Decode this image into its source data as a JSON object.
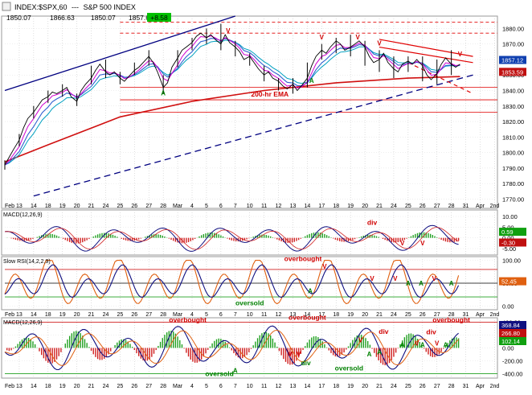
{
  "header": {
    "symbol": "INDEX:$SPX,60",
    "separator": "---",
    "name": "S&P 500 INDEX",
    "open": "1850.07",
    "high": "1866.63",
    "low": "1850.07",
    "close": "1857.62",
    "change": "+8.58"
  },
  "colors": {
    "price": "#000000",
    "ema_fast": "#3060d0",
    "ema_mid": "#d000d0",
    "ema_slow": "#00a0c0",
    "ema200": "#d01010",
    "trend_blue": "#000080",
    "trend_red": "#e00000",
    "trend_green": "#208060",
    "up_hist": "#20a020",
    "down_hist": "#d02020",
    "text_red": "#d00000",
    "text_green": "#008000"
  },
  "chart_data": [
    {
      "type": "line",
      "panel": "price",
      "y_ticks": [
        1770,
        1780,
        1790,
        1800,
        1810,
        1820,
        1830,
        1840,
        1850,
        1860,
        1870,
        1880
      ],
      "ylim": [
        1764,
        1888
      ],
      "x_sessions": [
        "Feb",
        "13",
        "14",
        "18",
        "19",
        "20",
        "21",
        "24",
        "25",
        "26",
        "27",
        "28",
        "Mar",
        "4",
        "5",
        "6",
        "7",
        "10",
        "11",
        "12",
        "13",
        "14",
        "17",
        "18",
        "19",
        "20",
        "21",
        "24",
        "25",
        "26",
        "27",
        "28",
        "31",
        "Apr",
        "2nd"
      ],
      "session_index": [
        0,
        13,
        14,
        15,
        16,
        17,
        18,
        19,
        20,
        21,
        22,
        23,
        24,
        25,
        26,
        27,
        28,
        29,
        30,
        31,
        32,
        33,
        34,
        35,
        36,
        37,
        38,
        39,
        40,
        41,
        42,
        43,
        44,
        45,
        46
      ],
      "visible_sessions_start": 12,
      "price_close_points": [
        [
          12.0,
          1792
        ],
        [
          12.3,
          1797
        ],
        [
          12.6,
          1802
        ],
        [
          13.0,
          1808
        ],
        [
          13.3,
          1816
        ],
        [
          13.6,
          1822
        ],
        [
          14.0,
          1826
        ],
        [
          14.3,
          1830
        ],
        [
          14.6,
          1834
        ],
        [
          15.0,
          1836
        ],
        [
          15.3,
          1839
        ],
        [
          15.6,
          1838
        ],
        [
          16.0,
          1840
        ],
        [
          16.3,
          1842
        ],
        [
          16.6,
          1836
        ],
        [
          17.0,
          1833
        ],
        [
          17.3,
          1840
        ],
        [
          17.6,
          1844
        ],
        [
          18.0,
          1848
        ],
        [
          18.3,
          1853
        ],
        [
          18.6,
          1857
        ],
        [
          19.0,
          1852
        ],
        [
          19.3,
          1850
        ],
        [
          19.6,
          1852
        ],
        [
          20.0,
          1848
        ],
        [
          20.3,
          1846
        ],
        [
          20.6,
          1849
        ],
        [
          21.0,
          1853
        ],
        [
          21.3,
          1855
        ],
        [
          21.6,
          1858
        ],
        [
          22.0,
          1862
        ],
        [
          22.3,
          1858
        ],
        [
          22.6,
          1852
        ],
        [
          23.0,
          1842
        ],
        [
          23.3,
          1845
        ],
        [
          23.6,
          1855
        ],
        [
          24.0,
          1861
        ],
        [
          24.3,
          1866
        ],
        [
          24.6,
          1868
        ],
        [
          25.0,
          1871
        ],
        [
          25.3,
          1875
        ],
        [
          25.6,
          1877
        ],
        [
          26.0,
          1874
        ],
        [
          26.3,
          1876
        ],
        [
          26.6,
          1873
        ],
        [
          27.0,
          1870
        ],
        [
          27.3,
          1876
        ],
        [
          27.6,
          1871
        ],
        [
          28.0,
          1868
        ],
        [
          28.3,
          1865
        ],
        [
          28.6,
          1860
        ],
        [
          29.0,
          1862
        ],
        [
          29.3,
          1858
        ],
        [
          29.6,
          1854
        ],
        [
          30.0,
          1850
        ],
        [
          30.3,
          1852
        ],
        [
          30.6,
          1848
        ],
        [
          31.0,
          1846
        ],
        [
          31.3,
          1843
        ],
        [
          31.6,
          1841
        ],
        [
          32.0,
          1844
        ],
        [
          32.3,
          1840
        ],
        [
          32.6,
          1843
        ],
        [
          33.0,
          1848
        ],
        [
          33.3,
          1856
        ],
        [
          33.6,
          1862
        ],
        [
          34.0,
          1866
        ],
        [
          34.3,
          1864
        ],
        [
          34.6,
          1868
        ],
        [
          35.0,
          1872
        ],
        [
          35.3,
          1870
        ],
        [
          35.6,
          1866
        ],
        [
          36.0,
          1868
        ],
        [
          36.3,
          1870
        ],
        [
          36.6,
          1872
        ],
        [
          37.0,
          1868
        ],
        [
          37.3,
          1862
        ],
        [
          37.6,
          1858
        ],
        [
          38.0,
          1860
        ],
        [
          38.3,
          1864
        ],
        [
          38.6,
          1858
        ],
        [
          39.0,
          1854
        ],
        [
          39.3,
          1852
        ],
        [
          39.6,
          1857
        ],
        [
          40.0,
          1859
        ],
        [
          40.3,
          1857
        ],
        [
          40.6,
          1860
        ],
        [
          41.0,
          1856
        ],
        [
          41.3,
          1850
        ],
        [
          41.6,
          1847
        ],
        [
          42.0,
          1851
        ],
        [
          42.3,
          1857
        ],
        [
          42.6,
          1861
        ],
        [
          43.0,
          1857
        ],
        [
          43.3,
          1855
        ],
        [
          43.6,
          1857
        ]
      ],
      "price_high_low": [
        [
          12.0,
          1789,
          1795
        ],
        [
          13.0,
          1804,
          1812
        ],
        [
          14.0,
          1822,
          1830
        ],
        [
          15.0,
          1832,
          1840
        ],
        [
          16.0,
          1836,
          1844
        ],
        [
          17.0,
          1830,
          1838
        ],
        [
          18.0,
          1844,
          1856
        ],
        [
          19.0,
          1848,
          1860
        ],
        [
          20.0,
          1844,
          1852
        ],
        [
          21.0,
          1850,
          1858
        ],
        [
          22.0,
          1856,
          1866
        ],
        [
          23.0,
          1838,
          1850
        ],
        [
          24.0,
          1855,
          1866
        ],
        [
          25.0,
          1866,
          1874
        ],
        [
          26.0,
          1870,
          1880
        ],
        [
          27.0,
          1866,
          1883
        ],
        [
          28.0,
          1862,
          1872
        ],
        [
          29.0,
          1856,
          1864
        ],
        [
          30.0,
          1846,
          1856
        ],
        [
          31.0,
          1840,
          1848
        ],
        [
          32.0,
          1838,
          1848
        ],
        [
          33.0,
          1842,
          1858
        ],
        [
          34.0,
          1860,
          1870
        ],
        [
          35.0,
          1864,
          1874
        ],
        [
          36.0,
          1862,
          1876
        ],
        [
          37.0,
          1856,
          1872
        ],
        [
          38.0,
          1852,
          1866
        ],
        [
          39.0,
          1848,
          1862
        ],
        [
          40.0,
          1852,
          1862
        ],
        [
          41.0,
          1846,
          1862
        ],
        [
          42.0,
          1844,
          1860
        ],
        [
          43.0,
          1850,
          1866
        ]
      ],
      "ema200_points": [
        [
          12.0,
          1794
        ],
        [
          15.0,
          1805
        ],
        [
          20.0,
          1823
        ],
        [
          25.0,
          1833
        ],
        [
          30.0,
          1840
        ],
        [
          35.0,
          1845
        ],
        [
          40.0,
          1848
        ],
        [
          43.6,
          1849
        ]
      ],
      "trendlines_blue": [
        [
          [
            12.0,
            1840
          ],
          [
            28.0,
            1888
          ]
        ],
        [
          [
            14.0,
            1772
          ],
          [
            44.5,
            1850
          ]
        ]
      ],
      "trendlines_red": [
        [
          [
            38.0,
            1873
          ],
          [
            44.5,
            1862
          ]
        ],
        [
          [
            38.0,
            1868
          ],
          [
            44.5,
            1858
          ]
        ],
        [
          [
            40.0,
            1858
          ],
          [
            44.5,
            1838
          ]
        ]
      ],
      "horizontal_levels": [
        1884,
        1877,
        1842,
        1834,
        1826
      ],
      "last_values": [
        "1857.12",
        "1853.59"
      ],
      "annotations": [
        {
          "text": "200-hr EMA",
          "x": 30.4,
          "y": 1836,
          "color_key": "text_red"
        },
        {
          "text": "A",
          "x": 23.0,
          "y": 1837,
          "color_key": "text_green"
        },
        {
          "text": "A",
          "x": 33.3,
          "y": 1845,
          "color_key": "text_green"
        },
        {
          "text": "V",
          "x": 27.5,
          "y": 1877,
          "color_key": "text_red"
        },
        {
          "text": "V",
          "x": 34.0,
          "y": 1873,
          "color_key": "text_red"
        },
        {
          "text": "V",
          "x": 36.5,
          "y": 1873,
          "color_key": "text_red"
        },
        {
          "text": "V",
          "x": 38.0,
          "y": 1869,
          "color_key": "text_red"
        },
        {
          "text": "V",
          "x": 43.6,
          "y": 1862,
          "color_key": "text_red"
        }
      ]
    },
    {
      "type": "line",
      "panel": "macd_short",
      "label": "MACD(12,26,9)",
      "y_ticks": [
        "10.00",
        "5.00",
        "0.00",
        "-5.00"
      ],
      "y_tick_values": [
        10,
        5,
        0,
        -5
      ],
      "ylim": [
        -8,
        13
      ],
      "last_values": [
        "0.59",
        "-0.30"
      ],
      "annotations": [
        {
          "text": "div",
          "x": 37.5,
          "y": 6,
          "color_key": "text_red"
        },
        {
          "text": "V",
          "x": 39.6,
          "y": -3.5,
          "color_key": "text_red"
        },
        {
          "text": "V",
          "x": 41.0,
          "y": -3.5,
          "color_key": "text_red"
        }
      ]
    },
    {
      "type": "line",
      "panel": "rsi",
      "label": "Slow RSI(14,2,2,9)",
      "y_ticks": [
        "100.00",
        "50.00",
        "0.00"
      ],
      "y_tick_values": [
        100,
        50,
        0
      ],
      "ylim": [
        -8,
        108
      ],
      "last_value": "52.45",
      "annotations": [
        {
          "text": "overbought",
          "x": 32.7,
          "y": 98,
          "color_key": "text_red"
        },
        {
          "text": "oversold",
          "x": 29.0,
          "y": 2,
          "color_key": "text_green"
        },
        {
          "text": "V",
          "x": 34.2,
          "y": 82,
          "color_key": "text_red"
        },
        {
          "text": "V",
          "x": 37.5,
          "y": 55,
          "color_key": "text_red"
        },
        {
          "text": "V",
          "x": 39.1,
          "y": 55,
          "color_key": "text_red"
        },
        {
          "text": "V",
          "x": 41.8,
          "y": 55,
          "color_key": "text_red"
        },
        {
          "text": "A",
          "x": 33.2,
          "y": 28,
          "color_key": "text_green"
        },
        {
          "text": "A",
          "x": 40.0,
          "y": 45,
          "color_key": "text_green"
        },
        {
          "text": "A",
          "x": 40.9,
          "y": 45,
          "color_key": "text_green"
        },
        {
          "text": "A",
          "x": 43.0,
          "y": 45,
          "color_key": "text_green"
        }
      ]
    },
    {
      "type": "line",
      "panel": "macd_long",
      "label": "MACD(12,26,9)",
      "y_ticks": [
        "400.00",
        "200.00",
        "0.00",
        "-200.00",
        "-400.00"
      ],
      "y_tick_values": [
        400,
        200,
        0,
        -200,
        -400
      ],
      "ylim": [
        -470,
        470
      ],
      "last_values": [
        "368.84",
        "266.80",
        "102.14"
      ],
      "annotations": [
        {
          "text": "overbought",
          "x": 24.7,
          "y": 400,
          "color_key": "text_red"
        },
        {
          "text": "overbought",
          "x": 33.0,
          "y": 440,
          "color_key": "text_red"
        },
        {
          "text": "overbought",
          "x": 43.0,
          "y": 400,
          "color_key": "text_red"
        },
        {
          "text": "oversold",
          "x": 26.9,
          "y": -440,
          "color_key": "text_green"
        },
        {
          "text": "oversold",
          "x": 35.9,
          "y": -350,
          "color_key": "text_green"
        },
        {
          "text": "div",
          "x": 32.9,
          "y": -270,
          "color_key": "text_green"
        },
        {
          "text": "div",
          "x": 38.3,
          "y": 220,
          "color_key": "text_red"
        },
        {
          "text": "div",
          "x": 41.6,
          "y": 210,
          "color_key": "text_red"
        },
        {
          "text": "A",
          "x": 28.0,
          "y": -390,
          "color_key": "text_green"
        },
        {
          "text": "A",
          "x": 37.3,
          "y": -130,
          "color_key": "text_green"
        },
        {
          "text": "A",
          "x": 38.0,
          "y": -100,
          "color_key": "text_green"
        },
        {
          "text": "A",
          "x": 39.6,
          "y": 10,
          "color_key": "text_green"
        },
        {
          "text": "A",
          "x": 41.0,
          "y": 10,
          "color_key": "text_green"
        },
        {
          "text": "A",
          "x": 42.6,
          "y": 10,
          "color_key": "text_green"
        },
        {
          "text": "V",
          "x": 31.8,
          "y": -130,
          "color_key": "text_red"
        },
        {
          "text": "V",
          "x": 32.4,
          "y": -130,
          "color_key": "text_red"
        },
        {
          "text": "V",
          "x": 36.7,
          "y": 90,
          "color_key": "text_red"
        },
        {
          "text": "V",
          "x": 40.6,
          "y": 40,
          "color_key": "text_red"
        },
        {
          "text": "V",
          "x": 42.0,
          "y": 40,
          "color_key": "text_red"
        }
      ]
    }
  ]
}
